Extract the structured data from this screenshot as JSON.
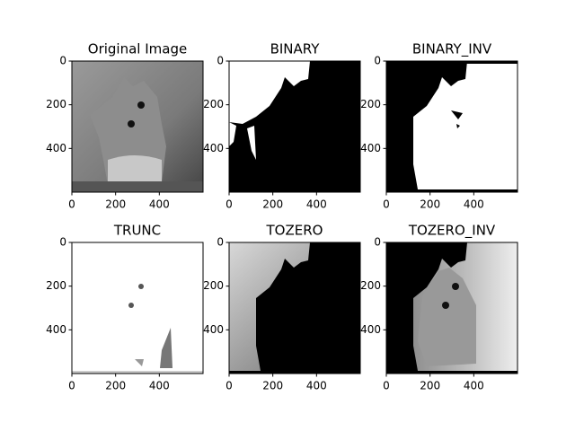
{
  "chart_data": [
    {
      "type": "image",
      "title": "Original Image",
      "xlim": [
        0,
        600
      ],
      "ylim": [
        600,
        0
      ],
      "xticks": [
        0,
        200,
        400
      ],
      "yticks": [
        0,
        200,
        400
      ]
    },
    {
      "type": "image",
      "title": "BINARY",
      "xlim": [
        0,
        600
      ],
      "ylim": [
        600,
        0
      ],
      "xticks": [
        0,
        200,
        400
      ],
      "yticks": [
        0,
        200,
        400
      ]
    },
    {
      "type": "image",
      "title": "BINARY_INV",
      "xlim": [
        0,
        600
      ],
      "ylim": [
        600,
        0
      ],
      "xticks": [
        0,
        200,
        400
      ],
      "yticks": [
        0,
        200,
        400
      ]
    },
    {
      "type": "image",
      "title": "TRUNC",
      "xlim": [
        0,
        600
      ],
      "ylim": [
        600,
        0
      ],
      "xticks": [
        0,
        200,
        400
      ],
      "yticks": [
        0,
        200,
        400
      ]
    },
    {
      "type": "image",
      "title": "TOZERO",
      "xlim": [
        0,
        600
      ],
      "ylim": [
        600,
        0
      ],
      "xticks": [
        0,
        200,
        400
      ],
      "yticks": [
        0,
        200,
        400
      ]
    },
    {
      "type": "image",
      "title": "TOZERO_INV",
      "xlim": [
        0,
        600
      ],
      "ylim": [
        600,
        0
      ],
      "xticks": [
        0,
        200,
        400
      ],
      "yticks": [
        0,
        200,
        400
      ]
    }
  ]
}
